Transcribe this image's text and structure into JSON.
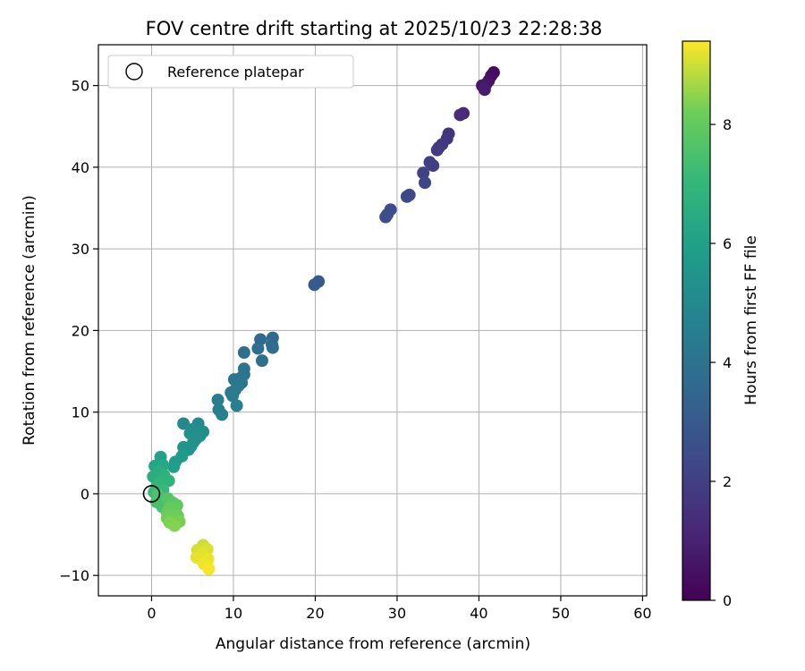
{
  "chart_data": {
    "type": "scatter",
    "title": "FOV centre drift starting at 2025/10/23 22:28:38",
    "xlabel": "Angular distance from reference (arcmin)",
    "ylabel": "Rotation from reference (arcmin)",
    "xlim": [
      -6.5,
      60.5
    ],
    "ylim": [
      -12.5,
      55
    ],
    "xticks": [
      0,
      10,
      20,
      30,
      40,
      50,
      60
    ],
    "yticks": [
      -10,
      0,
      10,
      20,
      30,
      40,
      50
    ],
    "xtick_labels": [
      "0",
      "10",
      "20",
      "30",
      "40",
      "50",
      "60"
    ],
    "ytick_labels": [
      "−10",
      "0",
      "10",
      "20",
      "30",
      "40",
      "50"
    ],
    "grid": true,
    "legend": {
      "position": "top-left",
      "entries": [
        "Reference platepar"
      ]
    },
    "colormap": "viridis",
    "colorbar": {
      "label": "Hours from first FF file",
      "range": [
        0,
        9.4
      ],
      "ticks": [
        0,
        2,
        4,
        6,
        8
      ],
      "tick_labels": [
        "0",
        "2",
        "4",
        "6",
        "8"
      ]
    },
    "reference_point": {
      "x": 0,
      "y": 0
    },
    "points": [
      {
        "x": 41.8,
        "y": 51.6,
        "t": 0.3
      },
      {
        "x": 41.5,
        "y": 51.2,
        "t": 0.4
      },
      {
        "x": 41.2,
        "y": 50.6,
        "t": 0.5
      },
      {
        "x": 40.9,
        "y": 50.2,
        "t": 0.6
      },
      {
        "x": 40.4,
        "y": 50.0,
        "t": 0.7
      },
      {
        "x": 40.7,
        "y": 49.5,
        "t": 0.8
      },
      {
        "x": 38.1,
        "y": 46.6,
        "t": 1.2
      },
      {
        "x": 37.7,
        "y": 46.4,
        "t": 1.3
      },
      {
        "x": 36.3,
        "y": 44.1,
        "t": 1.6
      },
      {
        "x": 36.1,
        "y": 43.5,
        "t": 1.65
      },
      {
        "x": 35.5,
        "y": 42.8,
        "t": 1.7
      },
      {
        "x": 35.1,
        "y": 42.4,
        "t": 1.75
      },
      {
        "x": 34.9,
        "y": 42.1,
        "t": 1.8
      },
      {
        "x": 34.0,
        "y": 40.6,
        "t": 1.95
      },
      {
        "x": 34.4,
        "y": 40.2,
        "t": 2.0
      },
      {
        "x": 33.2,
        "y": 39.3,
        "t": 2.1
      },
      {
        "x": 33.4,
        "y": 38.1,
        "t": 2.2
      },
      {
        "x": 31.5,
        "y": 36.6,
        "t": 2.3
      },
      {
        "x": 31.2,
        "y": 36.4,
        "t": 2.35
      },
      {
        "x": 29.2,
        "y": 34.8,
        "t": 2.5
      },
      {
        "x": 28.8,
        "y": 34.2,
        "t": 2.55
      },
      {
        "x": 28.6,
        "y": 33.9,
        "t": 2.6
      },
      {
        "x": 20.4,
        "y": 26.0,
        "t": 3.0
      },
      {
        "x": 19.9,
        "y": 25.6,
        "t": 3.05
      },
      {
        "x": 14.8,
        "y": 19.1,
        "t": 3.6
      },
      {
        "x": 13.3,
        "y": 18.9,
        "t": 3.65
      },
      {
        "x": 14.7,
        "y": 18.3,
        "t": 3.7
      },
      {
        "x": 14.8,
        "y": 17.9,
        "t": 3.75
      },
      {
        "x": 13.0,
        "y": 17.8,
        "t": 3.8
      },
      {
        "x": 11.3,
        "y": 17.3,
        "t": 3.85
      },
      {
        "x": 13.5,
        "y": 16.3,
        "t": 3.9
      },
      {
        "x": 11.3,
        "y": 15.3,
        "t": 4.0
      },
      {
        "x": 11.3,
        "y": 14.6,
        "t": 4.05
      },
      {
        "x": 10.9,
        "y": 14.2,
        "t": 4.1
      },
      {
        "x": 10.1,
        "y": 14.0,
        "t": 4.15
      },
      {
        "x": 11.0,
        "y": 13.6,
        "t": 4.2
      },
      {
        "x": 10.6,
        "y": 13.2,
        "t": 4.25
      },
      {
        "x": 10.2,
        "y": 12.7,
        "t": 4.3
      },
      {
        "x": 9.7,
        "y": 12.4,
        "t": 4.35
      },
      {
        "x": 9.9,
        "y": 12.0,
        "t": 4.4
      },
      {
        "x": 8.1,
        "y": 11.5,
        "t": 4.5
      },
      {
        "x": 8.2,
        "y": 10.3,
        "t": 4.55
      },
      {
        "x": 10.4,
        "y": 10.8,
        "t": 4.6
      },
      {
        "x": 8.6,
        "y": 9.7,
        "t": 4.65
      },
      {
        "x": 3.9,
        "y": 8.6,
        "t": 5.0
      },
      {
        "x": 5.7,
        "y": 8.6,
        "t": 5.05
      },
      {
        "x": 5.0,
        "y": 7.9,
        "t": 5.1
      },
      {
        "x": 6.3,
        "y": 7.6,
        "t": 5.15
      },
      {
        "x": 4.7,
        "y": 7.4,
        "t": 5.2
      },
      {
        "x": 5.9,
        "y": 7.1,
        "t": 5.25
      },
      {
        "x": 5.4,
        "y": 6.7,
        "t": 5.3
      },
      {
        "x": 5.1,
        "y": 6.3,
        "t": 5.35
      },
      {
        "x": 4.8,
        "y": 5.8,
        "t": 5.4
      },
      {
        "x": 3.9,
        "y": 5.7,
        "t": 5.45
      },
      {
        "x": 4.5,
        "y": 5.4,
        "t": 5.5
      },
      {
        "x": 3.7,
        "y": 4.6,
        "t": 5.7
      },
      {
        "x": 2.9,
        "y": 3.9,
        "t": 5.8
      },
      {
        "x": 2.7,
        "y": 3.3,
        "t": 5.9
      },
      {
        "x": 1.1,
        "y": 4.5,
        "t": 6.0
      },
      {
        "x": 0.4,
        "y": 3.4,
        "t": 6.2
      },
      {
        "x": 1.4,
        "y": 3.5,
        "t": 6.3
      },
      {
        "x": 0.8,
        "y": 2.8,
        "t": 6.5
      },
      {
        "x": 0.2,
        "y": 2.1,
        "t": 6.6
      },
      {
        "x": 1.5,
        "y": 2.3,
        "t": 6.7
      },
      {
        "x": 2.1,
        "y": 1.6,
        "t": 6.8
      },
      {
        "x": 1.0,
        "y": 1.3,
        "t": 6.9
      },
      {
        "x": 0.6,
        "y": 0.8,
        "t": 7.0
      },
      {
        "x": 1.4,
        "y": 0.5,
        "t": 7.1
      },
      {
        "x": 0.3,
        "y": 0.2,
        "t": 7.2
      },
      {
        "x": 0.9,
        "y": -0.4,
        "t": 7.3
      },
      {
        "x": 0.6,
        "y": -1.0,
        "t": 7.4
      },
      {
        "x": 1.3,
        "y": -1.6,
        "t": 7.5
      },
      {
        "x": 0.8,
        "y": -0.1,
        "t": 7.55
      },
      {
        "x": 2.0,
        "y": -0.6,
        "t": 7.7
      },
      {
        "x": 2.6,
        "y": -1.1,
        "t": 7.8
      },
      {
        "x": 3.1,
        "y": -1.4,
        "t": 7.9
      },
      {
        "x": 2.2,
        "y": -1.7,
        "t": 7.95
      },
      {
        "x": 2.9,
        "y": -2.0,
        "t": 8.0
      },
      {
        "x": 1.9,
        "y": -2.3,
        "t": 8.05
      },
      {
        "x": 2.4,
        "y": -2.6,
        "t": 8.1
      },
      {
        "x": 3.2,
        "y": -2.7,
        "t": 8.15
      },
      {
        "x": 1.9,
        "y": -3.0,
        "t": 8.2
      },
      {
        "x": 2.7,
        "y": -3.3,
        "t": 8.25
      },
      {
        "x": 3.4,
        "y": -3.4,
        "t": 8.3
      },
      {
        "x": 2.2,
        "y": -3.5,
        "t": 8.35
      },
      {
        "x": 2.8,
        "y": -3.9,
        "t": 8.4
      },
      {
        "x": 6.3,
        "y": -6.3,
        "t": 9.0
      },
      {
        "x": 5.6,
        "y": -6.9,
        "t": 9.05
      },
      {
        "x": 6.8,
        "y": -6.8,
        "t": 9.1
      },
      {
        "x": 6.2,
        "y": -7.3,
        "t": 9.15
      },
      {
        "x": 5.5,
        "y": -7.8,
        "t": 9.2
      },
      {
        "x": 6.9,
        "y": -8.0,
        "t": 9.25
      },
      {
        "x": 6.4,
        "y": -8.6,
        "t": 9.3
      },
      {
        "x": 7.0,
        "y": -9.2,
        "t": 9.35
      }
    ]
  }
}
